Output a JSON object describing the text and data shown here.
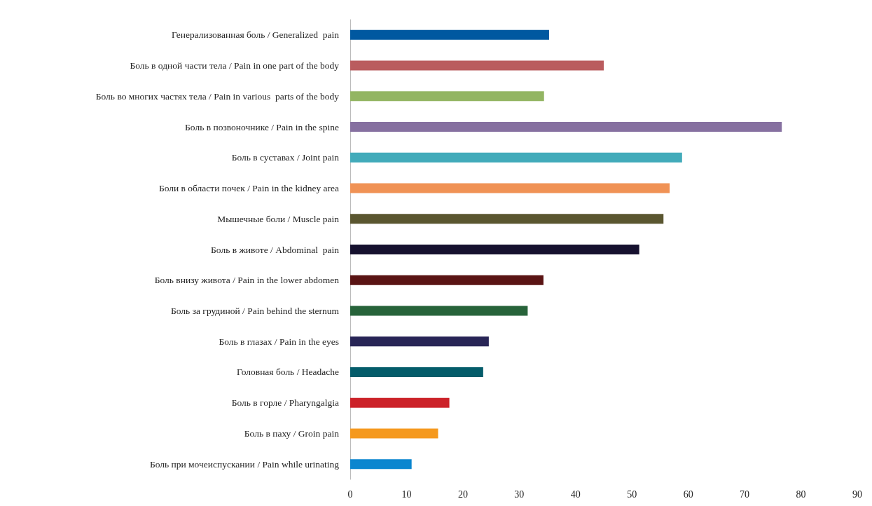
{
  "chart_data": {
    "type": "bar",
    "orientation": "horizontal",
    "categories": [
      "Генерализованная боль / Generalized  pain",
      "Боль в одной части тела / Pain in one part of the body",
      "Боль во многих частях тела / Pain in various  parts of the body",
      "Боль в позвоночнике / Pain in the spine",
      "Боль в суставах / Joint pain",
      "Боли в области почек / Pain in the kidney area",
      "Мышечные боли / Muscle pain",
      "Боль в животе / Abdominal  pain",
      "Боль внизу живота / Pain in the lower abdomen",
      "Боль за грудиной / Pain behind the sternum",
      "Боль в глазах / Pain in the eyes",
      "Головная боль / Headache",
      "Боль в горле / Pharyngalgia",
      "Боль в паху / Groin pain",
      "Боль при мочеиспускании / Pain while urinating"
    ],
    "values": [
      35.3,
      45,
      34.4,
      76.6,
      58.9,
      56.7,
      55.6,
      51.3,
      34.3,
      31.5,
      24.6,
      23.6,
      17.6,
      15.6,
      10.9
    ],
    "colors": [
      "#0058a0",
      "#ba5c5e",
      "#93b563",
      "#8670a0",
      "#42abba",
      "#f09255",
      "#5a5630",
      "#16112f",
      "#5a1414",
      "#27633a",
      "#282556",
      "#045c6a",
      "#cc2229",
      "#f5991e",
      "#0b86cf"
    ],
    "xlim": [
      0,
      90
    ],
    "xticks": [
      0,
      10,
      20,
      30,
      40,
      50,
      60,
      70,
      80,
      90
    ],
    "grid": false
  }
}
